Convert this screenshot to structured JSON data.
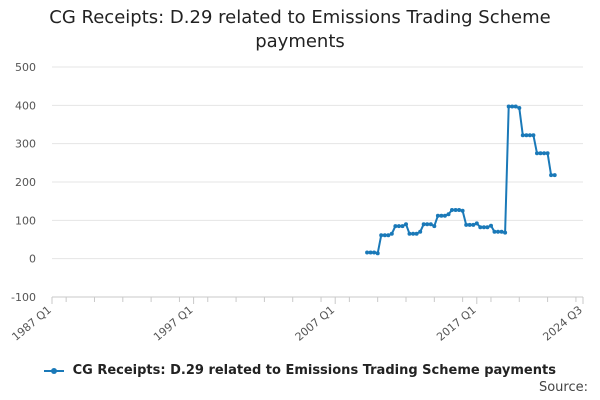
{
  "chart_data": {
    "type": "line",
    "title_lines": [
      "CG Receipts: D.29 related to Emissions Trading Scheme",
      "payments"
    ],
    "ylim": [
      -100,
      500
    ],
    "yticks": [
      -100,
      0,
      100,
      200,
      300,
      400,
      500
    ],
    "xticks": [
      "1987 Q1",
      "1997 Q1",
      "2007 Q1",
      "2017 Q1",
      "2024 Q3"
    ],
    "grid": "horizontal",
    "legend": "bottom",
    "source_label": "Source:",
    "series": [
      {
        "name": "CG Receipts: D.29 related to Emissions Trading Scheme payments",
        "color": "#1a79b8",
        "x": [
          "2009 Q2",
          "2009 Q3",
          "2009 Q4",
          "2010 Q1",
          "2010 Q2",
          "2010 Q3",
          "2010 Q4",
          "2011 Q1",
          "2011 Q2",
          "2011 Q3",
          "2011 Q4",
          "2012 Q1",
          "2012 Q2",
          "2012 Q3",
          "2012 Q4",
          "2013 Q1",
          "2013 Q2",
          "2013 Q3",
          "2013 Q4",
          "2014 Q1",
          "2014 Q2",
          "2014 Q3",
          "2014 Q4",
          "2015 Q1",
          "2015 Q2",
          "2015 Q3",
          "2015 Q4",
          "2016 Q1",
          "2016 Q2",
          "2016 Q3",
          "2016 Q4",
          "2017 Q1",
          "2017 Q2",
          "2017 Q3",
          "2017 Q4",
          "2018 Q1",
          "2018 Q2",
          "2018 Q3",
          "2018 Q4",
          "2019 Q1",
          "2019 Q2",
          "2019 Q3",
          "2019 Q4",
          "2020 Q1",
          "2020 Q2",
          "2020 Q3",
          "2020 Q4",
          "2021 Q1",
          "2021 Q2",
          "2021 Q3",
          "2021 Q4",
          "2022 Q1",
          "2022 Q2",
          "2022 Q3"
        ],
        "values": [
          16,
          16,
          16,
          14,
          61,
          61,
          61,
          65,
          85,
          85,
          85,
          90,
          65,
          65,
          65,
          70,
          90,
          90,
          90,
          85,
          112,
          112,
          112,
          116,
          127,
          127,
          127,
          125,
          88,
          88,
          88,
          92,
          82,
          82,
          82,
          86,
          70,
          70,
          70,
          68,
          397,
          397,
          397,
          393,
          322,
          322,
          322,
          322,
          275,
          275,
          275,
          275,
          218,
          218
        ]
      }
    ]
  }
}
